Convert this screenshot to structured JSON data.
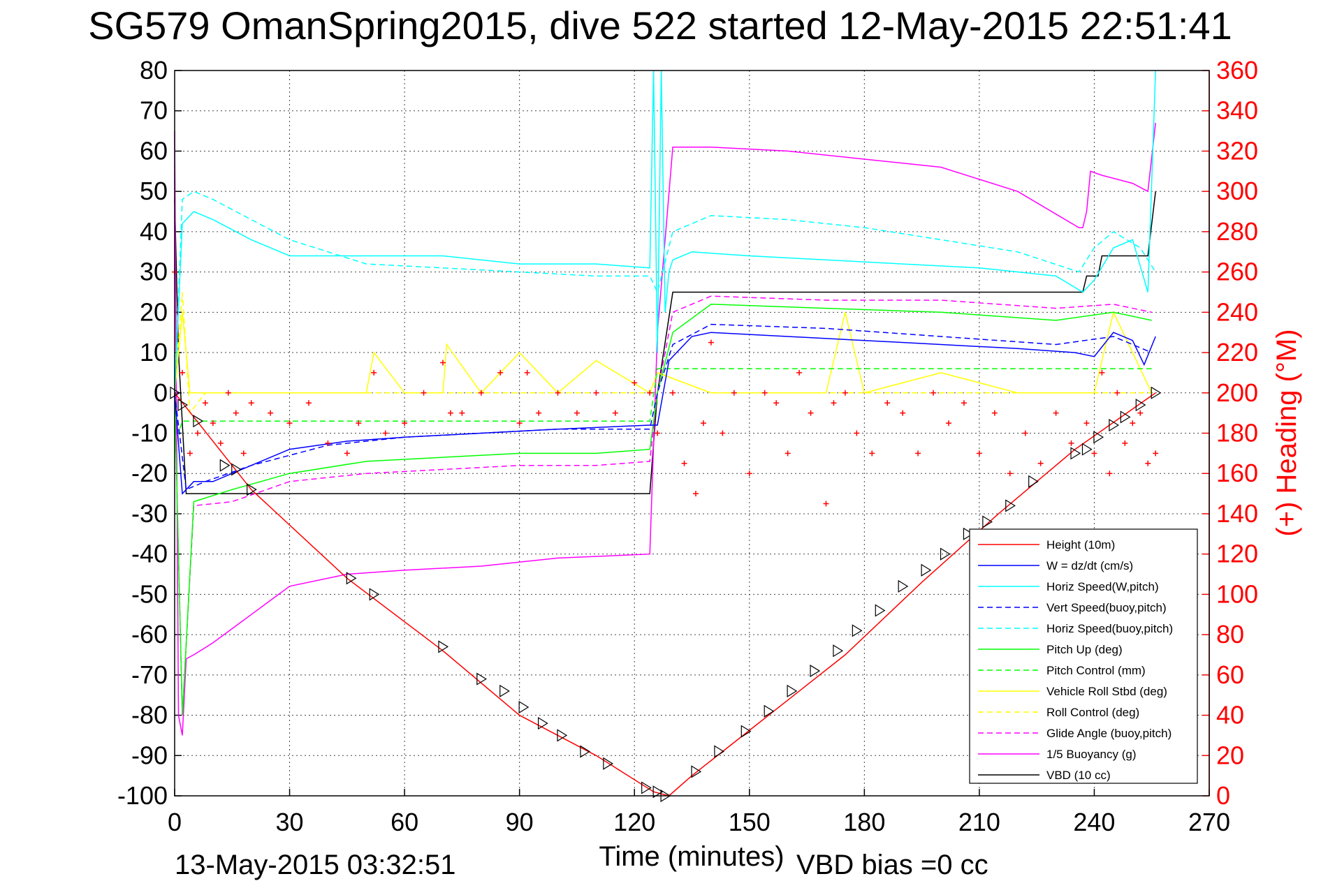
{
  "chart_data": {
    "type": "line",
    "title": "SG579 OmanSpring2015, dive 522 started 12-May-2015 22:51:41",
    "xlabel": "Time (minutes)",
    "ylabel": "",
    "y2label": "(+) Heading (°M)",
    "xlim": [
      0,
      270
    ],
    "ylim": [
      -100,
      80
    ],
    "y2lim": [
      0,
      360
    ],
    "xticks": [
      "0",
      "30",
      "60",
      "90",
      "120",
      "150",
      "180",
      "210",
      "240",
      "270"
    ],
    "yticks": [
      "80",
      "70",
      "60",
      "50",
      "40",
      "30",
      "20",
      "10",
      "0",
      "-10",
      "-20",
      "-30",
      "-40",
      "-50",
      "-60",
      "-70",
      "-80",
      "-90",
      "-100"
    ],
    "y2ticks": [
      "360",
      "340",
      "320",
      "300",
      "280",
      "260",
      "240",
      "220",
      "200",
      "180",
      "160",
      "140",
      "120",
      "100",
      "80",
      "60",
      "40",
      "20",
      "0"
    ],
    "grid": true,
    "legend_position": "bottom-right",
    "footer_left": "13-May-2015 03:32:51",
    "footer_right": "VBD bias =0 cc",
    "colors": {
      "red": "#ff0000",
      "blue": "#0000ff",
      "cyan": "#00ffff",
      "green": "#00ff00",
      "yellow": "#ffff00",
      "magenta": "#ff00ff",
      "black": "#000000"
    },
    "series": [
      {
        "name": "Height (10m)",
        "color": "#ff0000",
        "dash": "solid",
        "x": [
          0,
          20,
          45,
          70,
          90,
          110,
          125,
          129,
          135,
          155,
          175,
          195,
          215,
          235,
          256
        ],
        "y": [
          0,
          -24,
          -46,
          -64,
          -80,
          -90,
          -99,
          -100,
          -95,
          -80,
          -65,
          -47,
          -30,
          -14,
          0
        ]
      },
      {
        "name": "W = dz/dt (cm/s)",
        "color": "#0000ff",
        "dash": "solid",
        "x": [
          0,
          2,
          5,
          10,
          20,
          30,
          45,
          60,
          80,
          100,
          124,
          126,
          129,
          135,
          140,
          160,
          180,
          200,
          220,
          235,
          240,
          245,
          250,
          253,
          256
        ],
        "y": [
          0,
          -25,
          -22,
          -22,
          -18,
          -14,
          -12,
          -11,
          -10,
          -9,
          -8,
          -8,
          8,
          14,
          15,
          14,
          13,
          12,
          11,
          10,
          9,
          15,
          13,
          7,
          14
        ]
      },
      {
        "name": "Horiz Speed(W,pitch)",
        "color": "#00ffff",
        "dash": "solid",
        "x": [
          0,
          2,
          5,
          10,
          20,
          30,
          50,
          70,
          90,
          110,
          124,
          125,
          126,
          127,
          128,
          129,
          130,
          135,
          150,
          170,
          190,
          210,
          230,
          237,
          240,
          245,
          250,
          254,
          256
        ],
        "y": [
          0,
          42,
          45,
          43,
          38,
          34,
          34,
          34,
          32,
          32,
          31,
          80,
          10,
          80,
          20,
          30,
          33,
          35,
          34,
          33,
          32,
          31,
          29,
          25,
          28,
          36,
          38,
          25,
          80
        ]
      },
      {
        "name": "Vert Speed(buoy,pitch)",
        "color": "#0000ff",
        "dash": "dashed",
        "x": [
          0,
          3,
          8,
          20,
          40,
          60,
          80,
          100,
          124,
          126,
          130,
          140,
          170,
          200,
          230,
          245,
          255
        ],
        "y": [
          0,
          -24,
          -22,
          -18,
          -13,
          -11,
          -10,
          -9,
          -9,
          0,
          12,
          17,
          16,
          14,
          12,
          14,
          10
        ]
      },
      {
        "name": "Horiz Speed(buoy,pitch)",
        "color": "#00ffff",
        "dash": "dashed",
        "x": [
          0,
          2,
          5,
          10,
          20,
          30,
          50,
          70,
          90,
          110,
          124,
          126,
          130,
          140,
          160,
          180,
          200,
          220,
          236,
          240,
          245,
          252,
          256
        ],
        "y": [
          0,
          48,
          50,
          48,
          43,
          38,
          32,
          31,
          30,
          29,
          29,
          25,
          40,
          44,
          43,
          41,
          38,
          35,
          30,
          36,
          40,
          36,
          30
        ]
      },
      {
        "name": "Pitch Up (deg)",
        "color": "#00ff00",
        "dash": "solid",
        "x": [
          0,
          2,
          5,
          15,
          30,
          50,
          70,
          90,
          110,
          124,
          126,
          130,
          140,
          170,
          200,
          230,
          245,
          255
        ],
        "y": [
          0,
          -80,
          -27,
          -24,
          -20,
          -17,
          -16,
          -15,
          -15,
          -14,
          0,
          15,
          22,
          21,
          20,
          18,
          20,
          18
        ]
      },
      {
        "name": "Pitch Control (mm)",
        "color": "#00ff00",
        "dash": "dashed",
        "x": [
          0,
          1,
          2,
          60,
          124,
          126,
          128,
          255
        ],
        "y": [
          0,
          -10,
          -7,
          -7,
          -7,
          6,
          6,
          6
        ]
      },
      {
        "name": "Vehicle Roll Stbd (deg)",
        "color": "#ffff00",
        "dash": "solid",
        "x": [
          0,
          2,
          4,
          6,
          20,
          50,
          52,
          60,
          70,
          71,
          80,
          90,
          100,
          110,
          124,
          126,
          140,
          160,
          170,
          175,
          180,
          200,
          220,
          240,
          245,
          255
        ],
        "y": [
          0,
          20,
          0,
          0,
          0,
          0,
          10,
          0,
          0,
          12,
          0,
          10,
          0,
          8,
          0,
          5,
          0,
          0,
          0,
          20,
          0,
          5,
          0,
          0,
          20,
          0
        ]
      },
      {
        "name": "Roll Control (deg)",
        "color": "#ffff00",
        "dash": "dashed",
        "x": [
          0,
          2,
          4,
          8,
          20,
          60,
          124,
          126,
          140,
          200,
          255
        ],
        "y": [
          0,
          25,
          -5,
          0,
          0,
          0,
          0,
          5,
          0,
          0,
          0
        ]
      },
      {
        "name": "Glide Angle (buoy,pitch)",
        "color": "#ff00ff",
        "dash": "dashed",
        "x": [
          0,
          2,
          5,
          15,
          30,
          50,
          70,
          90,
          110,
          124,
          126,
          130,
          140,
          170,
          200,
          230,
          245,
          255
        ],
        "y": [
          0,
          -80,
          -28,
          -27,
          -22,
          -20,
          -19,
          -18,
          -18,
          -17,
          0,
          20,
          24,
          23,
          23,
          21,
          22,
          20
        ]
      },
      {
        "name": "1/5 Buoyancy (g)",
        "color": "#ff00ff",
        "dash": "solid",
        "x": [
          0,
          1,
          2,
          3,
          5,
          10,
          20,
          30,
          45,
          60,
          80,
          100,
          124,
          126,
          130,
          133,
          140,
          160,
          180,
          200,
          220,
          236,
          237,
          238,
          239,
          242,
          250,
          254,
          256
        ],
        "y": [
          65,
          -80,
          -85,
          -66,
          -65,
          -62,
          -55,
          -48,
          -45,
          -44,
          -43,
          -41,
          -40,
          15,
          61,
          61,
          61,
          60,
          58,
          56,
          50,
          41,
          41,
          45,
          55,
          54,
          52,
          50,
          67
        ]
      },
      {
        "name": "VBD (10 cc)",
        "color": "#000000",
        "dash": "solid",
        "x": [
          0,
          1,
          3,
          124,
          126,
          130,
          131,
          237,
          238,
          241,
          242,
          254,
          256
        ],
        "y": [
          48,
          10,
          -25,
          -25,
          0,
          25,
          25,
          25,
          29,
          29,
          34,
          34,
          50
        ]
      }
    ],
    "heading": {
      "name": "(+) Heading",
      "color": "#ff0000",
      "axis": "right",
      "x": [
        0,
        2,
        4,
        6,
        8,
        10,
        12,
        14,
        16,
        18,
        20,
        25,
        30,
        35,
        40,
        45,
        48,
        52,
        55,
        60,
        65,
        70,
        72,
        75,
        80,
        85,
        90,
        92,
        95,
        100,
        105,
        110,
        115,
        120,
        124,
        126,
        130,
        133,
        136,
        138,
        140,
        143,
        146,
        150,
        154,
        157,
        160,
        163,
        166,
        170,
        172,
        175,
        178,
        182,
        186,
        190,
        194,
        198,
        202,
        206,
        210,
        214,
        218,
        222,
        226,
        230,
        234,
        238,
        240,
        242,
        244,
        246,
        248,
        250,
        252,
        254,
        256
      ],
      "y": [
        260,
        210,
        170,
        180,
        195,
        185,
        175,
        200,
        190,
        170,
        195,
        190,
        185,
        195,
        175,
        170,
        185,
        210,
        180,
        185,
        200,
        215,
        190,
        190,
        200,
        210,
        185,
        210,
        190,
        200,
        190,
        200,
        190,
        205,
        200,
        180,
        200,
        165,
        150,
        185,
        225,
        180,
        200,
        160,
        200,
        195,
        170,
        210,
        190,
        145,
        195,
        200,
        180,
        170,
        195,
        190,
        170,
        200,
        185,
        195,
        170,
        190,
        160,
        180,
        165,
        190,
        175,
        185,
        170,
        210,
        160,
        200,
        175,
        185,
        190,
        165,
        170
      ]
    },
    "markers": {
      "name": "Height markers",
      "x": [
        0,
        2,
        6,
        13,
        16,
        20,
        46,
        52,
        70,
        80,
        86,
        91,
        96,
        101,
        107,
        113,
        123,
        126,
        128,
        136,
        142,
        149,
        155,
        161,
        167,
        173,
        178,
        184,
        190,
        196,
        201,
        207,
        212,
        218,
        224,
        235,
        238,
        241,
        245,
        248,
        252,
        256
      ],
      "y": [
        0,
        -3,
        -7,
        -18,
        -19,
        -24,
        -46,
        -50,
        -63,
        -71,
        -74,
        -78,
        -82,
        -85,
        -89,
        -92,
        -98,
        -99,
        -100,
        -94,
        -89,
        -84,
        -79,
        -74,
        -69,
        -64,
        -59,
        -54,
        -48,
        -44,
        -40,
        -35,
        -32,
        -28,
        -22,
        -15,
        -14,
        -11,
        -8,
        -6,
        -3,
        0
      ]
    }
  }
}
